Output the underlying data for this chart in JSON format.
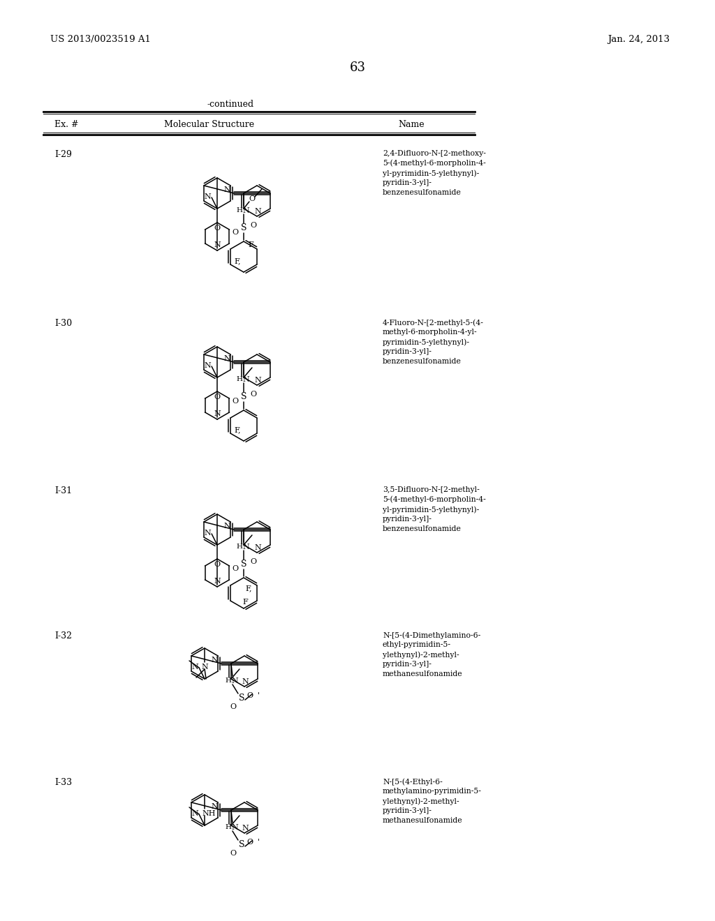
{
  "page_number": "63",
  "patent_number": "US 2013/0023519 A1",
  "patent_date": "Jan. 24, 2013",
  "continued_label": "-continued",
  "col_headers": [
    "Ex. #",
    "Molecular Structure",
    "Name"
  ],
  "background_color": "#ffffff",
  "entries": [
    {
      "id": "I-29",
      "name": "2,4-Difluoro-N-[2-methoxy-\n5-(4-methyl-6-morpholin-4-\nyl-pyrimidin-5-ylethynyl)-\npyridin-3-yl]-\nbenzenesulfonamide"
    },
    {
      "id": "I-30",
      "name": "4-Fluoro-N-[2-methyl-5-(4-\nmethyl-6-morpholin-4-yl-\npyrimidin-5-ylethynyl)-\npyridin-3-yl]-\nbenzenesulfonamide"
    },
    {
      "id": "I-31",
      "name": "3,5-Difluoro-N-[2-methyl-\n5-(4-methyl-6-morpholin-4-\nyl-pyrimidin-5-ylethynyl)-\npyridin-3-yl]-\nbenzenesulfonamide"
    },
    {
      "id": "I-32",
      "name": "N-[5-(4-Dimethylamino-6-\nethyl-pyrimidin-5-\nylethynyl)-2-methyl-\npyridin-3-yl]-\nmethanesulfonamide"
    },
    {
      "id": "I-33",
      "name": "N-[5-(4-Ethyl-6-\nmethylamino-pyrimidin-5-\nylethynyl)-2-methyl-\npyridin-3-yl]-\nmethanesulfonamide"
    }
  ]
}
